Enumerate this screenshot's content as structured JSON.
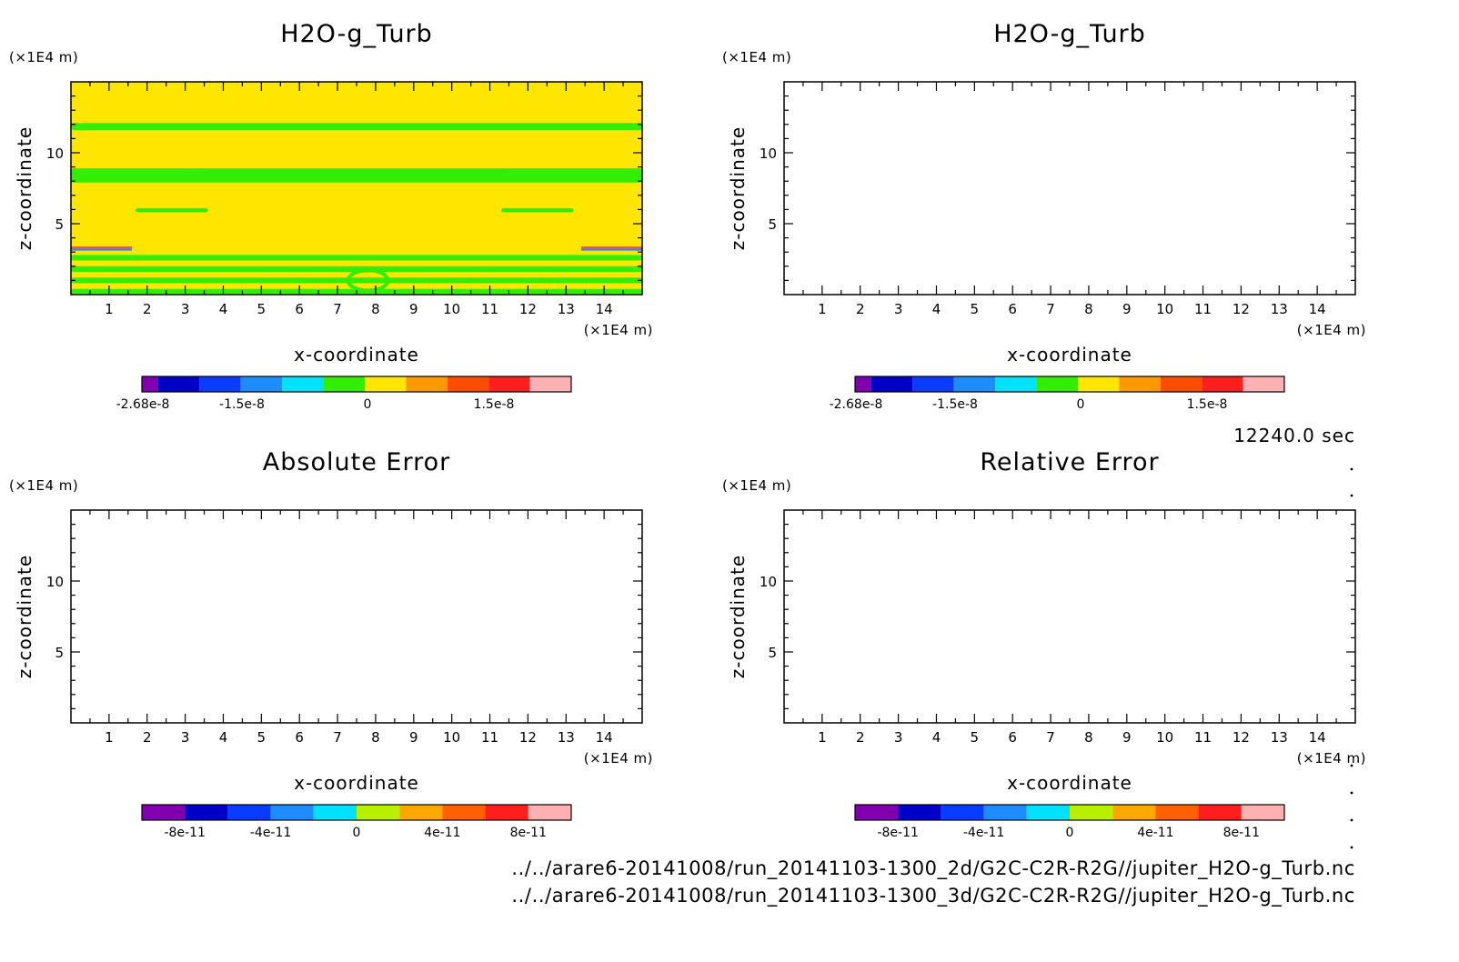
{
  "chart_data": [
    {
      "type": "heatmap",
      "title": "H2O-g_Turb",
      "xlabel": "x-coordinate",
      "ylabel": "z-coordinate",
      "x_unit": "(×1E4 m)",
      "y_unit": "(×1E4 m)",
      "xlim": [
        0,
        15
      ],
      "ylim": [
        0,
        15
      ],
      "x_ticks": [
        1,
        2,
        3,
        4,
        5,
        6,
        7,
        8,
        9,
        10,
        11,
        12,
        13,
        14
      ],
      "y_ticks": [
        5,
        10
      ],
      "background_level": "0 to 4.5e-9 (yellow)",
      "bands": [
        {
          "z_range": [
            11.6,
            12.1
          ],
          "level": "green"
        },
        {
          "z_range": [
            7.9,
            8.9
          ],
          "level": "green"
        },
        {
          "z_range": [
            8.6,
            8.9
          ],
          "x_range": [
            3.3,
            11.5
          ],
          "level": "green"
        },
        {
          "z_range": [
            5.8,
            6.1
          ],
          "x_range": [
            1.7,
            3.6
          ],
          "level": "green"
        },
        {
          "z_range": [
            5.8,
            6.1
          ],
          "x_range": [
            11.3,
            13.2
          ],
          "level": "green"
        },
        {
          "z_range": [
            3.1,
            3.4
          ],
          "x_range": [
            0,
            1.6
          ],
          "level": "red/blue"
        },
        {
          "z_range": [
            3.1,
            3.4
          ],
          "x_range": [
            13.4,
            15
          ],
          "level": "red/blue"
        },
        {
          "z_range": [
            2.4,
            2.8
          ],
          "level": "green"
        },
        {
          "z_range": [
            1.6,
            2.0
          ],
          "level": "green"
        },
        {
          "z_range": [
            0.8,
            1.2
          ],
          "level": "green"
        },
        {
          "z_range": [
            0.0,
            0.4
          ],
          "level": "green"
        }
      ],
      "colorbar": {
        "colors": [
          "#8000b0",
          "#0000c8",
          "#0a3cff",
          "#1e8cff",
          "#00e0ff",
          "#33ee00",
          "#ffe600",
          "#ff9900",
          "#ff4d00",
          "#ff1e1e",
          "#ffb0b0"
        ],
        "tick_labels": [
          "-2.68e-8",
          "-1.5e-8",
          "0",
          "1.5e-8"
        ]
      }
    },
    {
      "type": "heatmap",
      "title": "H2O-g_Turb",
      "xlabel": "x-coordinate",
      "ylabel": "z-coordinate",
      "x_unit": "(×1E4 m)",
      "y_unit": "(×1E4 m)",
      "xlim": [
        0,
        15
      ],
      "ylim": [
        0,
        15
      ],
      "x_ticks": [
        1,
        2,
        3,
        4,
        5,
        6,
        7,
        8,
        9,
        10,
        11,
        12,
        13,
        14
      ],
      "y_ticks": [
        5,
        10
      ],
      "colorbar": {
        "colors": [
          "#8000b0",
          "#0000c8",
          "#0a3cff",
          "#1e8cff",
          "#00e0ff",
          "#33ee00",
          "#ffe600",
          "#ff9900",
          "#ff4d00",
          "#ff1e1e",
          "#ffb0b0"
        ],
        "tick_labels": [
          "-2.68e-8",
          "-1.5e-8",
          "0",
          "1.5e-8"
        ]
      }
    },
    {
      "type": "heatmap",
      "title": "Absolute Error",
      "xlabel": "x-coordinate",
      "ylabel": "z-coordinate",
      "x_unit": "(×1E4 m)",
      "y_unit": "(×1E4 m)",
      "xlim": [
        0,
        15
      ],
      "ylim": [
        0,
        15
      ],
      "x_ticks": [
        1,
        2,
        3,
        4,
        5,
        6,
        7,
        8,
        9,
        10,
        11,
        12,
        13,
        14
      ],
      "y_ticks": [
        5,
        10
      ],
      "values": "empty",
      "colorbar": {
        "colors": [
          "#8000b0",
          "#0000c8",
          "#0a3cff",
          "#1e8cff",
          "#00e0ff",
          "#b8f000",
          "#ffa800",
          "#ff6000",
          "#ff1e1e",
          "#ffb0b0"
        ],
        "tick_labels": [
          "-8e-11",
          "-4e-11",
          "0",
          "4e-11",
          "8e-11"
        ]
      }
    },
    {
      "type": "heatmap",
      "title": "Relative Error",
      "xlabel": "x-coordinate",
      "ylabel": "z-coordinate",
      "x_unit": "(×1E4 m)",
      "y_unit": "(×1E4 m)",
      "xlim": [
        0,
        15
      ],
      "ylim": [
        0,
        15
      ],
      "x_ticks": [
        1,
        2,
        3,
        4,
        5,
        6,
        7,
        8,
        9,
        10,
        11,
        12,
        13,
        14
      ],
      "y_ticks": [
        5,
        10
      ],
      "values": "empty",
      "colorbar": {
        "colors": [
          "#8000b0",
          "#0000c8",
          "#0a3cff",
          "#1e8cff",
          "#00e0ff",
          "#b8f000",
          "#ffa800",
          "#ff6000",
          "#ff1e1e",
          "#ffb0b0"
        ],
        "tick_labels": [
          "-8e-11",
          "-4e-11",
          "0",
          "4e-11",
          "8e-11"
        ]
      }
    }
  ],
  "time_label": "12240.0 sec",
  "footer": {
    "line1": "../../arare6-20141008/run_20141103-1300_2d/G2C-C2R-R2G//jupiter_H2O-g_Turb.nc",
    "line2": "../../arare6-20141008/run_20141103-1300_3d/G2C-C2R-R2G//jupiter_H2O-g_Turb.nc"
  }
}
